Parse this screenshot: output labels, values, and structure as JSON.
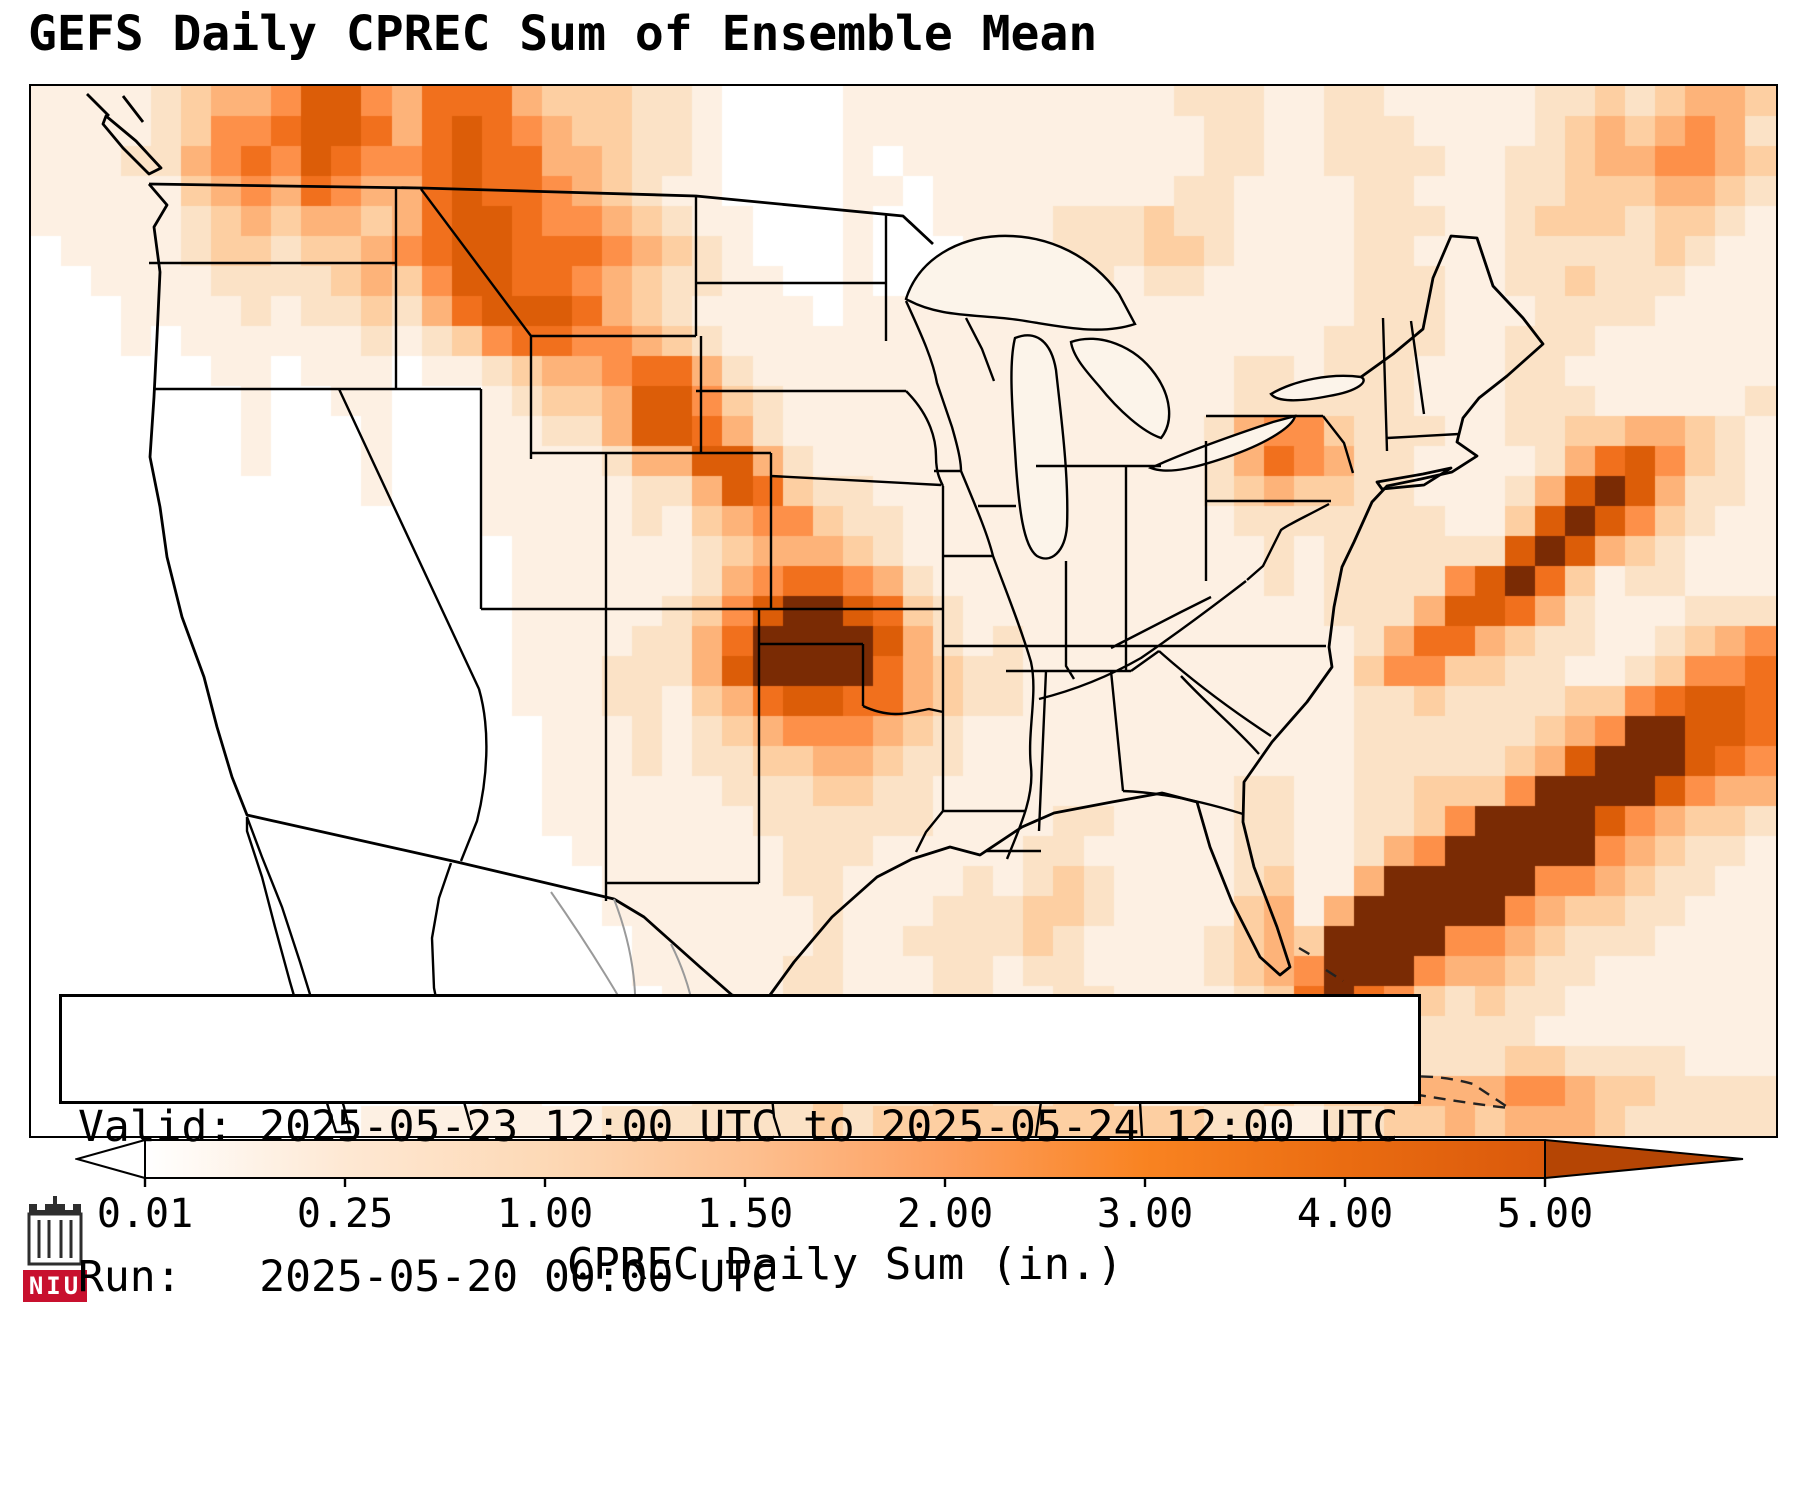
{
  "title": "GEFS Daily CPREC Sum of Ensemble Mean",
  "info_box": {
    "line1": "Valid: 2025-05-23 12:00 UTC to 2025-05-24 12:00 UTC",
    "line2": "Run:   2025-05-20 00:00 UTC"
  },
  "colorbar": {
    "label": "CPREC Daily Sum (in.)",
    "ticks": [
      "0.01",
      "0.25",
      "1.00",
      "1.50",
      "2.00",
      "3.00",
      "4.00",
      "5.00"
    ],
    "stop_colors": [
      "#ffffff",
      "#fee8d3",
      "#fdd9b6",
      "#fdc090",
      "#fd9f5f",
      "#f98321",
      "#ea6c11",
      "#da590b"
    ],
    "extend_right_color": "#b54504",
    "extend_left_color": "#ffffff"
  },
  "logo": {
    "text": "NIU",
    "color": "#c8102e"
  },
  "chart_data": {
    "type": "heatmap",
    "title": "GEFS Daily CPREC Sum of Ensemble Mean",
    "variable": "CPREC Daily Sum",
    "units": "in.",
    "valid_period": "2025-05-23 12:00 UTC to 2025-05-24 12:00 UTC",
    "run_time": "2025-05-20 00:00 UTC",
    "region": "Continental United States with southern Canada, Mexico, Gulf of Mexico, Cuba and western Atlantic",
    "scale_ticks_in": [
      0.01,
      0.25,
      1.0,
      1.5,
      2.0,
      3.0,
      4.0,
      5.0
    ],
    "legend_position": "bottom",
    "levels_in": [
      0,
      0.01,
      0.25,
      1.0,
      1.5,
      2.0,
      3.0,
      4.0,
      5.0
    ],
    "level_colors": [
      "#ffffff",
      "#fdf0e3",
      "#fbe2c6",
      "#fdcfa2",
      "#fdb379",
      "#fd9049",
      "#f1701d",
      "#dc5d08",
      "#7a2b04"
    ],
    "grid": {
      "cols": 58,
      "rows": 35,
      "encoding": "each digit 0-8 is a precipitation bin index into levels_in; rows listed north to south, segments concatenate west to east",
      "rows_segments": [
        [
          "1111",
          "2344",
          "5775",
          "46664",
          "3332",
          "21",
          "0000",
          "11111",
          "1111",
          "112221",
          "122111",
          "11223",
          "23443"
        ],
        [
          "1111",
          "2355",
          "6776",
          "46765",
          "4332",
          "21",
          "0000",
          "11111",
          "1111",
          "111221",
          "122211",
          "11234",
          "34542"
        ],
        [
          "1112",
          "2456",
          "5765",
          "56766",
          "4432",
          "21",
          "0000",
          "10111",
          "1111",
          "111221",
          "122221",
          "12234",
          "45543"
        ],
        [
          "1111",
          "1345",
          "4654",
          "46766",
          "5432",
          "11",
          "0000",
          "11011",
          "1111",
          "112211",
          "112211",
          "12233",
          "34432"
        ],
        [
          "1111",
          "1234",
          "3443",
          "46776",
          "5543",
          "21",
          "1000",
          "10011",
          "1122",
          "232211",
          "112221",
          "12333",
          "23321"
        ],
        [
          "0111",
          "1233",
          "2334",
          "56776",
          "6654",
          "32",
          "1000",
          "10001",
          "1122",
          "233211",
          "112211",
          "12222",
          "23211"
        ],
        [
          "0011",
          "1122",
          "2234",
          "35776",
          "6543",
          "22",
          "1100",
          "10011",
          "1112",
          "122111",
          "112221",
          "12232",
          "22111"
        ],
        [
          "0001",
          "1112",
          "1223",
          "24677",
          "7643",
          "21",
          "1110",
          "11111",
          "1111",
          "111111",
          "112221",
          "11222",
          "21111"
        ],
        [
          "0001",
          "0111",
          "1112",
          "12356",
          "6554",
          "32",
          "1111",
          "11111",
          "1111",
          "111111",
          "122221",
          "12221",
          "11111"
        ],
        [
          "0000",
          "0011",
          "0111",
          "01123",
          "4456",
          "64",
          "2111",
          "11111",
          "1111",
          "111122",
          "122211",
          "12211",
          "11111"
        ],
        [
          "0000",
          "0001",
          "0011",
          "00012",
          "3347",
          "75",
          "3211",
          "11111",
          "1111",
          "111122",
          "222211",
          "12221",
          "11112"
        ],
        [
          "0000",
          "0001",
          "0001",
          "00011",
          "2247",
          "76",
          "4211",
          "11111",
          "1111",
          "111245",
          "532221",
          "12233",
          "44321"
        ],
        [
          "0000",
          "0001",
          "0001",
          "00011",
          "1124",
          "47",
          "7421",
          "11111",
          "1111",
          "111246",
          "542211",
          "11246",
          "75321"
        ],
        [
          "0000",
          "0000",
          "0001",
          "00011",
          "1112",
          "24",
          "7632",
          "21111",
          "1111",
          "111234",
          "332211",
          "12478",
          "74221"
        ],
        [
          "0000",
          "0000",
          "0000",
          "00011",
          "1112",
          "13",
          "4553",
          "22111",
          "1111",
          "111122",
          "222221",
          "13787",
          "53211"
        ],
        [
          "0000",
          "0000",
          "0000",
          "00001",
          "1111",
          "12",
          "3444",
          "32111",
          "1111",
          "111112",
          "122222",
          "27874",
          "32111"
        ],
        [
          "0000",
          "0000",
          "0000",
          "00001",
          "1111",
          "12",
          "4566",
          "54211",
          "1111",
          "111112",
          "122225",
          "78631",
          "22111"
        ],
        [
          "0000",
          "0000",
          "0000",
          "00001",
          "1111",
          "23",
          "5788",
          "76321",
          "1111",
          "111111",
          "122247",
          "76421",
          "11222"
        ],
        [
          "0000",
          "0000",
          "0000",
          "00001",
          "1112",
          "24",
          "6888",
          "87421",
          "2111",
          "111111",
          "112466",
          "43221",
          "12345"
        ],
        [
          "0000",
          "0000",
          "0000",
          "00001",
          "1122",
          "24",
          "7888",
          "86432",
          "2111",
          "111111",
          "113553",
          "32211",
          "23556"
        ],
        [
          "0000",
          "0000",
          "0000",
          "00001",
          "1122",
          "13",
          "4677",
          "66432",
          "2111",
          "111111",
          "112232",
          "22233",
          "56776"
        ],
        [
          "0000",
          "0000",
          "0000",
          "00000",
          "1112",
          "12",
          "3455",
          "54321",
          "1111",
          "111111",
          "112222",
          "22345",
          "88776"
        ],
        [
          "0000",
          "0000",
          "0000",
          "00000",
          "1112",
          "12",
          "2334",
          "43221",
          "1111",
          "111111",
          "112222",
          "23478",
          "88765"
        ],
        [
          "0000",
          "0000",
          "0000",
          "00000",
          "1111",
          "11",
          "2223",
          "32211",
          "1111",
          "111122",
          "112233",
          "35888",
          "87544"
        ],
        [
          "0000",
          "0000",
          "0000",
          "00000",
          "1111",
          "11",
          "1222",
          "22211",
          "1122",
          "111122",
          "112235",
          "88887",
          "54332"
        ],
        [
          "0000",
          "0000",
          "0000",
          "00000",
          "0111",
          "11",
          "1122",
          "21111",
          "1221",
          "111122",
          "112458",
          "88885",
          "43221"
        ],
        [
          "0000",
          "0000",
          "0000",
          "00000",
          "0011",
          "11",
          "1122",
          "11112",
          "1232",
          "111123",
          "114888",
          "88554",
          "32211"
        ],
        [
          "0000",
          "0000",
          "0000",
          "00000",
          "0011",
          "11",
          "1112",
          "11122",
          "2332",
          "111134",
          "148888",
          "85433",
          "22111"
        ],
        [
          "0000",
          "0000",
          "0000",
          "00000",
          "0001",
          "11",
          "1112",
          "11222",
          "2321",
          "111234",
          "388885",
          "54322",
          "21111"
        ],
        [
          "0000",
          "0000",
          "0000",
          "00000",
          "0001",
          "11",
          "1122",
          "11122",
          "1221",
          "111234",
          "588854",
          "43221",
          "11111"
        ],
        [
          "0000",
          "0000",
          "0000",
          "00000",
          "0000",
          "11",
          "1122",
          "11122",
          "1122",
          "111123",
          "686532",
          "32211",
          "11111"
        ],
        [
          "0000",
          "0000",
          "0000",
          "00000",
          "0000",
          "11",
          "1222",
          "22221",
          "2221",
          "111122",
          "565322",
          "22111",
          "11111"
        ],
        [
          "0000",
          "0000",
          "0000",
          "00000",
          "0000",
          "12",
          "2222",
          "22222",
          "2222",
          "111122",
          "344322",
          "23322",
          "22111"
        ],
        [
          "0000",
          "0000",
          "0000",
          "00011",
          "0000",
          "12",
          "2223",
          "22233",
          "2233",
          "111223",
          "233344",
          "45543",
          "32222"
        ],
        [
          "0000",
          "0000",
          "0001",
          "11111",
          "1122",
          "22",
          "2223",
          "23333",
          "3333",
          "333221",
          "122334",
          "34443",
          "22222"
        ]
      ]
    }
  }
}
